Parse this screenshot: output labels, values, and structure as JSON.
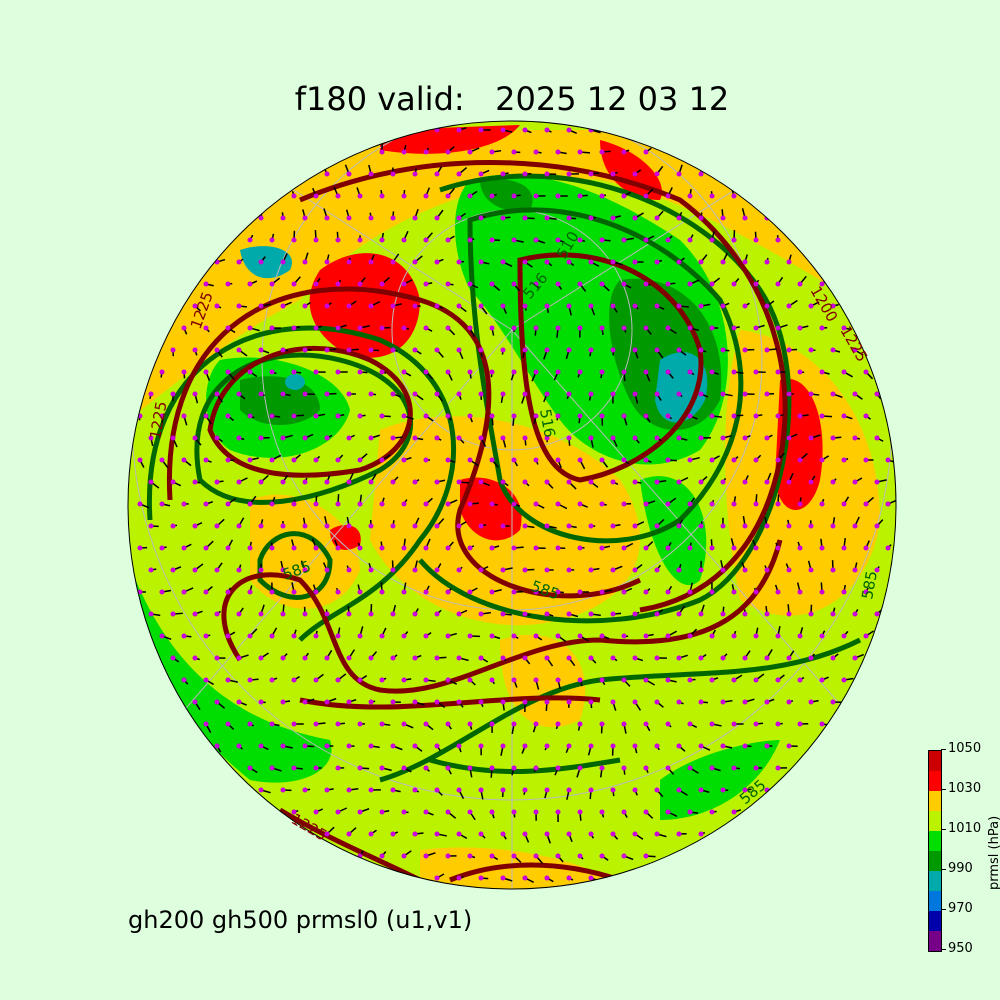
{
  "title": "f180 valid:   2025 12 03 12",
  "subtitle": "gh200 gh500 prmsl0 (u1,v1)",
  "colorbar": {
    "label": "prmsl (hPa)",
    "ticks": [
      "950",
      "970",
      "990",
      "1010",
      "1030",
      "1050"
    ],
    "colors": [
      "#770088",
      "#0000aa",
      "#0077dd",
      "#00aaaa",
      "#009900",
      "#00dd00",
      "#bbf200",
      "#ffcc00",
      "#ff0000",
      "#cc0000"
    ]
  },
  "map": {
    "projection": "north polar orthographic",
    "background_fill": "#bbf200",
    "contour_colors": {
      "gh200": "#800000",
      "gh500": "#006600"
    },
    "wind_dot_color": "#cc00dd",
    "contour_labels": [
      "1225",
      "1225",
      "1200",
      "1225",
      "1225",
      "585",
      "585",
      "585",
      "516",
      "510",
      "516",
      "585"
    ]
  }
}
